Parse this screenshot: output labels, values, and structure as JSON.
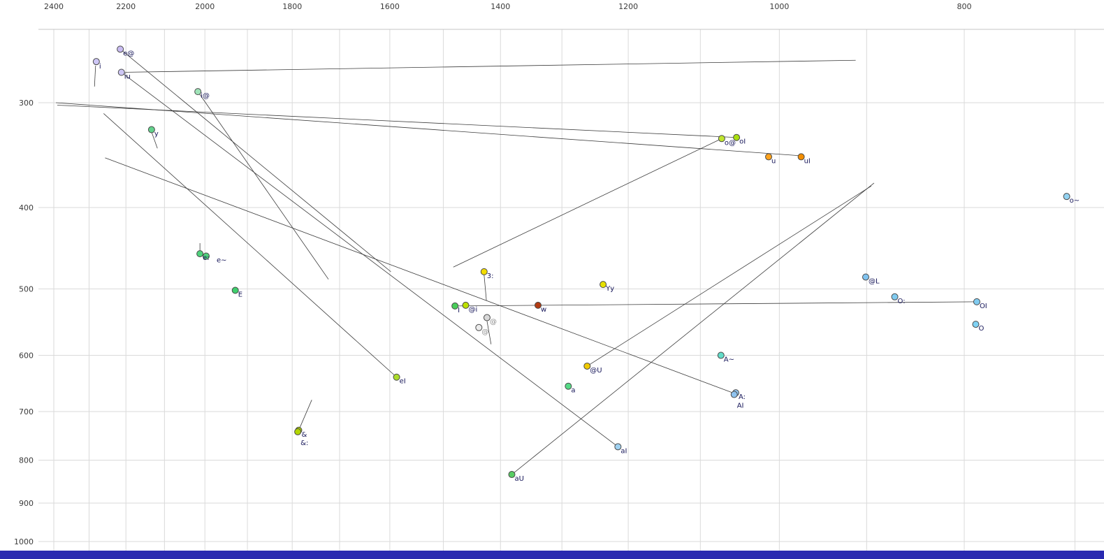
{
  "chart_data": {
    "type": "scatter",
    "title": "",
    "x_axis": {
      "scale": "log",
      "reversed": true,
      "tick_labels": [
        "2400",
        "2200",
        "2000",
        "1800",
        "1600",
        "1400",
        "1200",
        "1000",
        "800"
      ],
      "tick_values": [
        2400,
        2200,
        2000,
        1800,
        1600,
        1400,
        1200,
        1000,
        800
      ],
      "grid_values": [
        2400,
        2300,
        2200,
        2100,
        2000,
        1900,
        1800,
        1700,
        1600,
        1500,
        1400,
        1300,
        1200,
        1100,
        1000,
        900,
        800,
        700
      ],
      "range": [
        2450,
        700
      ]
    },
    "y_axis": {
      "scale": "log",
      "reversed": true,
      "tick_labels": [
        "300",
        "400",
        "500",
        "600",
        "700",
        "800",
        "900",
        "1000"
      ],
      "tick_values": [
        300,
        400,
        500,
        600,
        700,
        800,
        900,
        1000
      ],
      "grid_values": [
        300,
        400,
        500,
        600,
        700,
        800,
        900,
        1000
      ],
      "range": [
        245,
        1000
      ]
    },
    "points": [
      {
        "label": "e@",
        "f2": 2215,
        "f1": 259,
        "color": "#c9bcf2"
      },
      {
        "label": "i",
        "f2": 2280,
        "f1": 268,
        "color": "#cdc6f5",
        "ldy": 10
      },
      {
        "label": "iu",
        "f2": 2212,
        "f1": 276,
        "color": "#cdc6f5"
      },
      {
        "label": "i@",
        "f2": 2017,
        "f1": 291,
        "color": "#9fe3b8"
      },
      {
        "label": "y",
        "f2": 2133,
        "f1": 323,
        "color": "#63d28c"
      },
      {
        "label": "o@",
        "f2": 1072,
        "f1": 331,
        "color": "#bfe52e"
      },
      {
        "label": "oI",
        "f2": 1053,
        "f1": 330,
        "color": "#a9df0f"
      },
      {
        "label": "u",
        "f2": 1013,
        "f1": 348,
        "color": "#ffa21c"
      },
      {
        "label": "uI",
        "f2": 974,
        "f1": 348,
        "color": "#f28d00"
      },
      {
        "label": "o~",
        "f2": 707,
        "f1": 388,
        "color": "#93d3f2"
      },
      {
        "label": "e:",
        "f2": 2012,
        "f1": 454,
        "color": "#4fd27c"
      },
      {
        "label": "e~",
        "f2": 1997,
        "f1": 457,
        "color": "#4fd27c",
        "ldx": 15
      },
      {
        "label": "E",
        "f2": 1928,
        "f1": 502,
        "color": "#3fce6d"
      },
      {
        "label": "3:",
        "f2": 1428,
        "f1": 477,
        "color": "#f2dc00"
      },
      {
        "label": "Yy",
        "f2": 1237,
        "f1": 494,
        "color": "#e6e000"
      },
      {
        "label": "I",
        "f2": 1479,
        "f1": 524,
        "color": "#49cd59"
      },
      {
        "label": "@i",
        "f2": 1460,
        "f1": 523,
        "color": "#bce000"
      },
      {
        "label": "@",
        "f2": 1423,
        "f1": 541,
        "color": "#d9d9d9",
        "lcolor": "#8a8a8a"
      },
      {
        "label": "@",
        "f2": 1437,
        "f1": 556,
        "color": "#ececec",
        "lcolor": "#8a8a8a"
      },
      {
        "label": "w",
        "f2": 1338,
        "f1": 523,
        "color": "#b23b12"
      },
      {
        "label": "O:",
        "f2": 870,
        "f1": 511,
        "color": "#80cbf0"
      },
      {
        "label": "@L",
        "f2": 901,
        "f1": 484,
        "color": "#80c3f0"
      },
      {
        "label": "OI",
        "f2": 788,
        "f1": 518,
        "color": "#80cbf0"
      },
      {
        "label": "O",
        "f2": 789,
        "f1": 551,
        "color": "#80d2f4"
      },
      {
        "label": "@U",
        "f2": 1261,
        "f1": 618,
        "color": "#f0ca00"
      },
      {
        "label": "a",
        "f2": 1290,
        "f1": 653,
        "color": "#55da85"
      },
      {
        "label": "A~",
        "f2": 1073,
        "f1": 600,
        "color": "#62dcc8"
      },
      {
        "label": "A:",
        "f2": 1054,
        "f1": 665,
        "color": "#8fc3ef"
      },
      {
        "label": "AI",
        "f2": 1056,
        "f1": 668,
        "color": "#8fc3ef",
        "ldy": 19
      },
      {
        "label": "aI",
        "f2": 1215,
        "f1": 771,
        "color": "#9fd1f1"
      },
      {
        "label": "aU",
        "f2": 1381,
        "f1": 832,
        "color": "#57cc63"
      },
      {
        "label": "eI",
        "f2": 1587,
        "f1": 637,
        "color": "#abdc2a"
      },
      {
        "label": "&",
        "f2": 1786,
        "f1": 737,
        "color": "#b3d600"
      },
      {
        "label": "&:",
        "f2": 1788,
        "f1": 740,
        "color": "#b3d600",
        "ldy": 19
      }
    ],
    "segments": [
      {
        "name": "iu-trajectory",
        "f2a": 2212,
        "f1a": 276,
        "f2b": 912,
        "f1b": 267
      },
      {
        "name": "uI-trajectory",
        "f2a": 974,
        "f1a": 347,
        "f2b": 2394,
        "f1b": 300
      },
      {
        "name": "oI-trajectory",
        "f2a": 1053,
        "f1a": 330,
        "f2b": 2390,
        "f1b": 302
      },
      {
        "name": "o@-trajectory",
        "f2a": 1072,
        "f1a": 331,
        "f2b": 1482,
        "f1b": 471
      },
      {
        "name": "aI-trajectory",
        "f2a": 1215,
        "f1a": 771,
        "f2b": 2212,
        "f1b": 276
      },
      {
        "name": "eI-trajectory",
        "f2a": 1587,
        "f1a": 637,
        "f2b": 2260,
        "f1b": 309
      },
      {
        "name": "i@-trajectory",
        "f2a": 2017,
        "f1a": 291,
        "f2b": 1723,
        "f1b": 487
      },
      {
        "name": "e@-trajectory",
        "f2a": 2215,
        "f1a": 259,
        "f2b": 1598,
        "f1b": 477
      },
      {
        "name": "AI-trajectory",
        "f2a": 1054,
        "f1a": 667,
        "f2b": 2256,
        "f1b": 349
      },
      {
        "name": "aU-trajectory",
        "f2a": 1381,
        "f1a": 832,
        "f2b": 892,
        "f1b": 374
      },
      {
        "name": "@U-trajectory",
        "f2a": 1261,
        "f1a": 618,
        "f2b": 895,
        "f1b": 377
      },
      {
        "name": "OI-trajectory",
        "f2a": 788,
        "f1a": 518,
        "f2b": 1479,
        "f1b": 524
      },
      {
        "name": "i-tick",
        "f2a": 2282,
        "f1a": 271,
        "f2b": 2285,
        "f1b": 287
      },
      {
        "name": "y-tick",
        "f2a": 2133,
        "f1a": 325,
        "f2b": 2118,
        "f1b": 340
      },
      {
        "name": "e:-tick",
        "f2a": 2012,
        "f1a": 441,
        "f2b": 2012,
        "f1b": 453
      },
      {
        "name": "3:-tick",
        "f2a": 1428,
        "f1a": 481,
        "f2b": 1424,
        "f1b": 516
      },
      {
        "name": "@-tick",
        "f2a": 1423,
        "f1a": 546,
        "f2b": 1416,
        "f1b": 582
      },
      {
        "name": "&-tick",
        "f2a": 1786,
        "f1a": 737,
        "f2b": 1758,
        "f1b": 678
      }
    ],
    "legend": null,
    "grid": true
  },
  "colors": {
    "grid": "#dadada",
    "frame": "#c4c4c4",
    "trajectory": "#3c3c3c",
    "axis_text": "#3a3a3a",
    "point_label": "#17175a",
    "point_stroke": "#4a4a4a",
    "footer_bar": "#2a2ab0",
    "background": "#ffffff"
  }
}
